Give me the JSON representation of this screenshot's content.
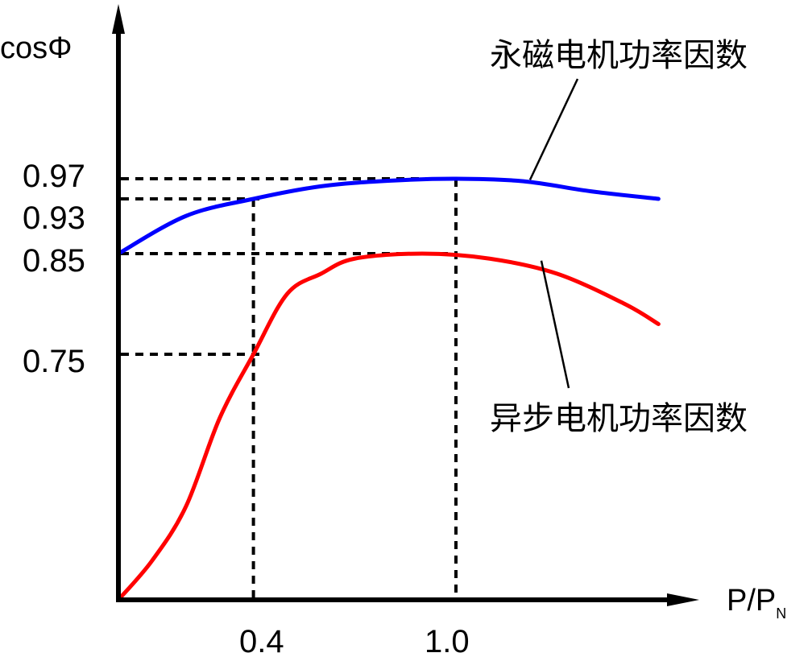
{
  "chart_data": {
    "type": "line",
    "ylabel": "cosΦ",
    "xlabel": {
      "main": "P/P",
      "subscript": "N"
    },
    "x_ticks": [
      "0.4",
      "1.0"
    ],
    "y_ticks": [
      "0.97",
      "0.93",
      "0.85",
      "0.75"
    ],
    "reference_lines": {
      "horizontal": [
        0.97,
        0.93,
        0.85,
        0.75
      ],
      "vertical": [
        0.4,
        1.0
      ]
    },
    "series": [
      {
        "name": "永磁电机功率因数",
        "color": "#0000ff",
        "points": [
          [
            0,
            0.85
          ],
          [
            0.2,
            0.905
          ],
          [
            0.4,
            0.93
          ],
          [
            0.6,
            0.955
          ],
          [
            0.8,
            0.966
          ],
          [
            1.0,
            0.97
          ],
          [
            1.2,
            0.965
          ],
          [
            1.4,
            0.945
          ],
          [
            1.6,
            0.93
          ]
        ]
      },
      {
        "name": "异步电机功率因数",
        "color": "#ff0000",
        "points": [
          [
            0,
            0.25
          ],
          [
            0.1,
            0.33
          ],
          [
            0.2,
            0.44
          ],
          [
            0.3,
            0.62
          ],
          [
            0.4,
            0.75
          ],
          [
            0.5,
            0.81
          ],
          [
            0.6,
            0.83
          ],
          [
            0.7,
            0.845
          ],
          [
            0.9,
            0.85
          ],
          [
            1.1,
            0.845
          ],
          [
            1.3,
            0.83
          ],
          [
            1.5,
            0.8
          ],
          [
            1.6,
            0.78
          ]
        ]
      }
    ]
  }
}
